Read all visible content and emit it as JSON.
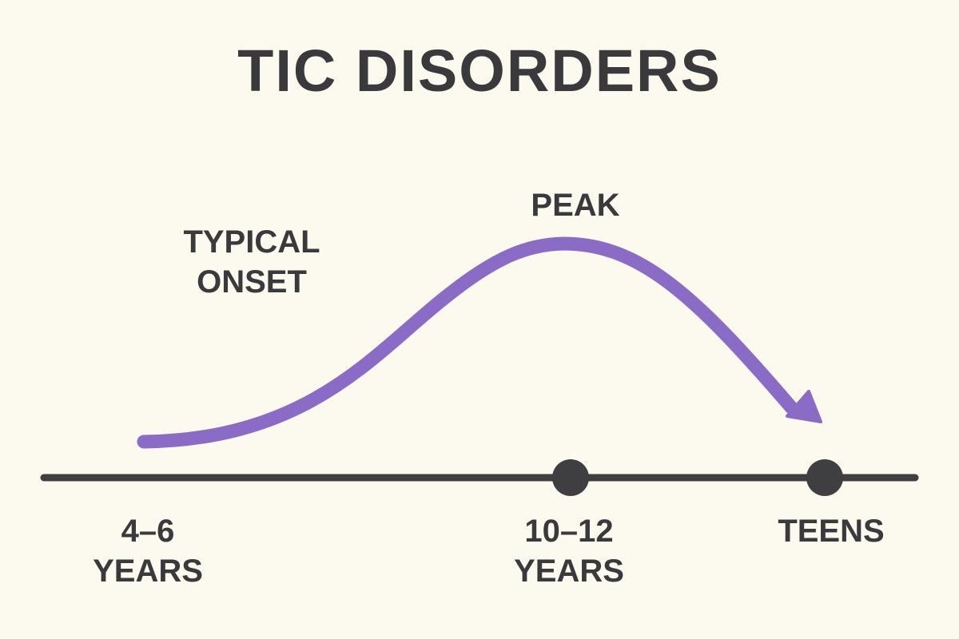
{
  "title": "TIC DISORDERS",
  "labels": {
    "onset_line1": "TYPICAL",
    "onset_line2": "ONSET",
    "peak": "PEAK"
  },
  "timeline": [
    {
      "line1": "4–6",
      "line2": "YEARS",
      "marker": false
    },
    {
      "line1": "10–12",
      "line2": "YEARS",
      "marker": true
    },
    {
      "line1": "TEENS",
      "line2": "",
      "marker": true
    }
  ],
  "colors": {
    "background": "#fcf9ee",
    "text": "#3a3a3c",
    "curve": "#8a6cc6",
    "axis": "#3f3f42"
  }
}
